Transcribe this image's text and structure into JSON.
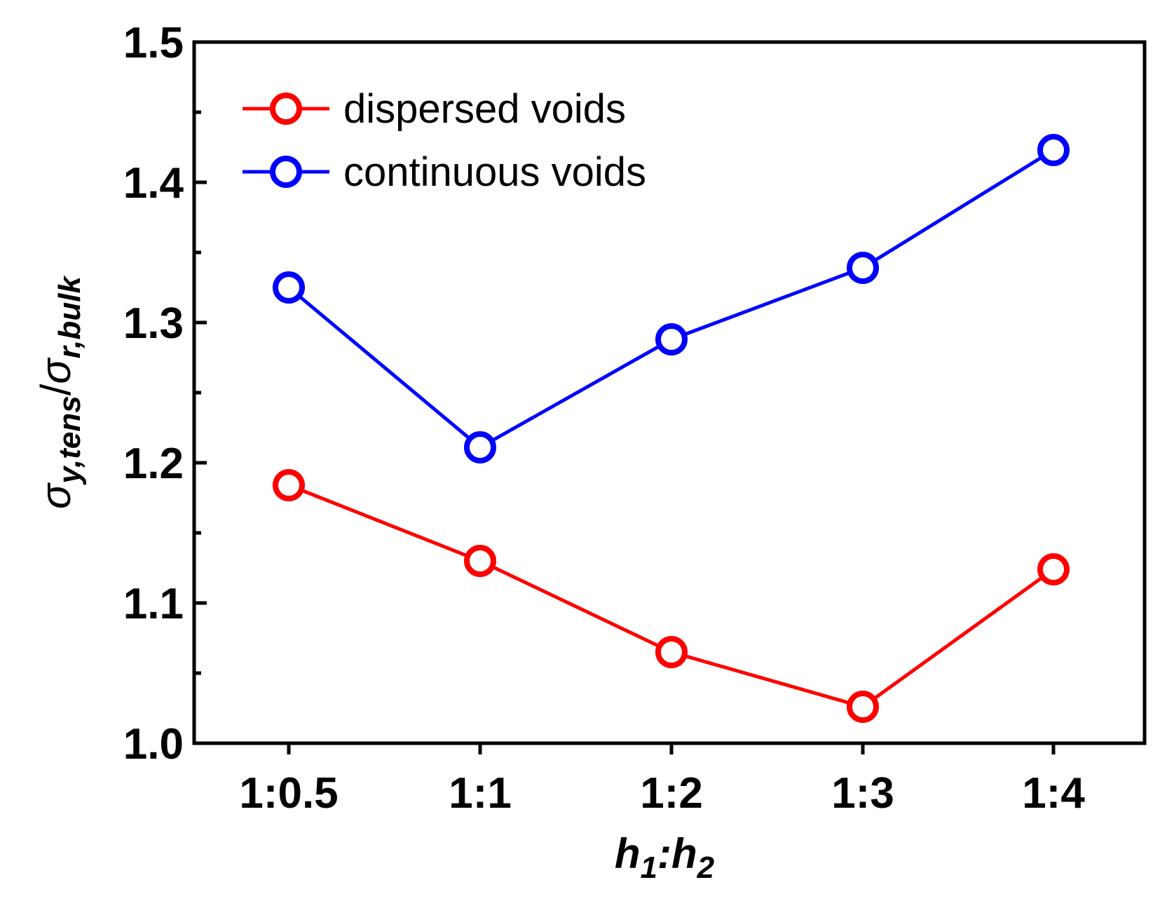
{
  "chart_data": {
    "type": "line",
    "title": "",
    "categories": [
      "1:0.5",
      "1:1",
      "1:2",
      "1:3",
      "1:4"
    ],
    "series": [
      {
        "name": "dispersed voids",
        "color": "#ff0000",
        "marker": "open-circle",
        "values": [
          1.184,
          1.13,
          1.065,
          1.026,
          1.124
        ]
      },
      {
        "name": "continuous voids",
        "color": "#0000ff",
        "marker": "open-circle",
        "values": [
          1.325,
          1.211,
          1.288,
          1.339,
          1.423
        ]
      }
    ],
    "xlabel": {
      "main": "h",
      "sub1": "1",
      "sep": ":",
      "main2": "h",
      "sub2": "2",
      "text": "h1:h2"
    },
    "ylabel": {
      "sym1": "σ",
      "sub1": "y,tens",
      "slash": "/",
      "sym2": "σ",
      "sub2": "r,bulk",
      "text": "σy,tens/σr,bulk"
    },
    "ylim": [
      1.0,
      1.5
    ],
    "yticks": [
      1.0,
      1.1,
      1.2,
      1.3,
      1.4,
      1.5
    ],
    "ytick_labels": [
      "1.0",
      "1.1",
      "1.2",
      "1.3",
      "1.4",
      "1.5"
    ],
    "y_minor_step": 0.05,
    "grid": false,
    "legend_position": "top-left"
  }
}
